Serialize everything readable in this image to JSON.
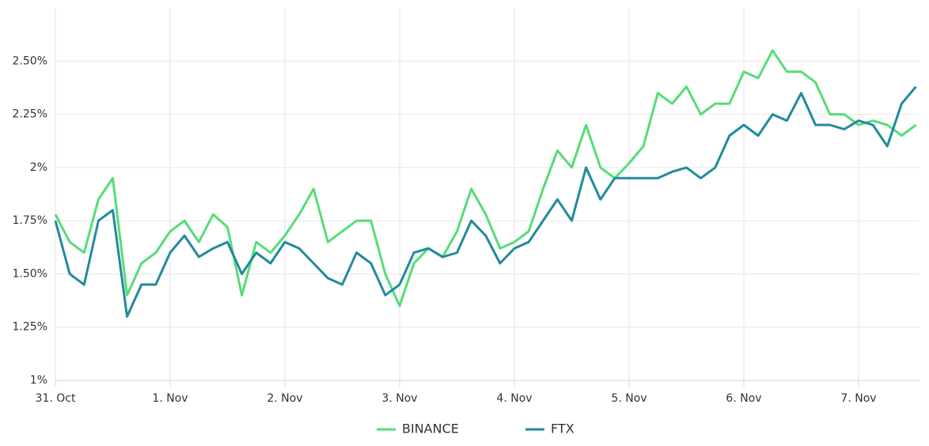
{
  "chart_data": {
    "type": "line",
    "x": [
      0,
      0.125,
      0.25,
      0.375,
      0.5,
      0.625,
      0.75,
      0.875,
      1,
      1.125,
      1.25,
      1.375,
      1.5,
      1.625,
      1.75,
      1.875,
      2,
      2.125,
      2.25,
      2.375,
      2.5,
      2.625,
      2.75,
      2.875,
      3,
      3.125,
      3.25,
      3.375,
      3.5,
      3.625,
      3.75,
      3.875,
      4,
      4.125,
      4.25,
      4.375,
      4.5,
      4.625,
      4.75,
      4.875,
      5,
      5.125,
      5.25,
      5.375,
      5.5,
      5.625,
      5.75,
      5.875,
      6,
      6.125,
      6.25,
      6.375,
      6.5,
      6.625,
      6.75,
      6.875,
      7,
      7.125,
      7.25,
      7.375,
      7.5
    ],
    "series": [
      {
        "name": "BINANCE",
        "color": "#55dd77",
        "values": [
          1.78,
          1.65,
          1.6,
          1.85,
          1.95,
          1.4,
          1.55,
          1.6,
          1.7,
          1.75,
          1.65,
          1.78,
          1.72,
          1.4,
          1.65,
          1.6,
          1.68,
          1.78,
          1.9,
          1.65,
          1.7,
          1.75,
          1.75,
          1.5,
          1.35,
          1.55,
          1.62,
          1.58,
          1.7,
          1.9,
          1.78,
          1.62,
          1.65,
          1.7,
          1.9,
          2.08,
          2.0,
          2.2,
          2.0,
          1.95,
          2.02,
          2.1,
          2.35,
          2.3,
          2.38,
          2.25,
          2.3,
          2.3,
          2.45,
          2.42,
          2.55,
          2.45,
          2.45,
          2.4,
          2.25,
          2.25,
          2.2,
          2.22,
          2.2,
          2.15,
          2.2
        ]
      },
      {
        "name": "FTX",
        "color": "#238a9c",
        "values": [
          1.75,
          1.5,
          1.45,
          1.75,
          1.8,
          1.3,
          1.45,
          1.45,
          1.6,
          1.68,
          1.58,
          1.62,
          1.65,
          1.5,
          1.6,
          1.55,
          1.65,
          1.62,
          1.55,
          1.48,
          1.45,
          1.6,
          1.55,
          1.4,
          1.45,
          1.6,
          1.62,
          1.58,
          1.6,
          1.75,
          1.68,
          1.55,
          1.62,
          1.65,
          1.75,
          1.85,
          1.75,
          2.0,
          1.85,
          1.95,
          1.95,
          1.95,
          1.95,
          1.98,
          2.0,
          1.95,
          2.0,
          2.15,
          2.2,
          2.15,
          2.25,
          2.22,
          2.35,
          2.2,
          2.2,
          2.18,
          2.22,
          2.2,
          2.1,
          2.3,
          2.38
        ]
      }
    ],
    "xlim": [
      0,
      7.5
    ],
    "xticks": [
      {
        "value": 0,
        "label": "31. Oct"
      },
      {
        "value": 1,
        "label": "1. Nov"
      },
      {
        "value": 2,
        "label": "2. Nov"
      },
      {
        "value": 3,
        "label": "3. Nov"
      },
      {
        "value": 4,
        "label": "4. Nov"
      },
      {
        "value": 5,
        "label": "5. Nov"
      },
      {
        "value": 6,
        "label": "6. Nov"
      },
      {
        "value": 7,
        "label": "7. Nov"
      }
    ],
    "ylim": [
      1,
      2.75
    ],
    "yticks": [
      {
        "value": 1,
        "label": "1%"
      },
      {
        "value": 1.25,
        "label": "1.25%"
      },
      {
        "value": 1.5,
        "label": "1.50%"
      },
      {
        "value": 1.75,
        "label": "1.75%"
      },
      {
        "value": 2,
        "label": "2%"
      },
      {
        "value": 2.25,
        "label": "2.25%"
      },
      {
        "value": 2.5,
        "label": "2.50%"
      }
    ],
    "grid": true,
    "legend": "bottom"
  }
}
